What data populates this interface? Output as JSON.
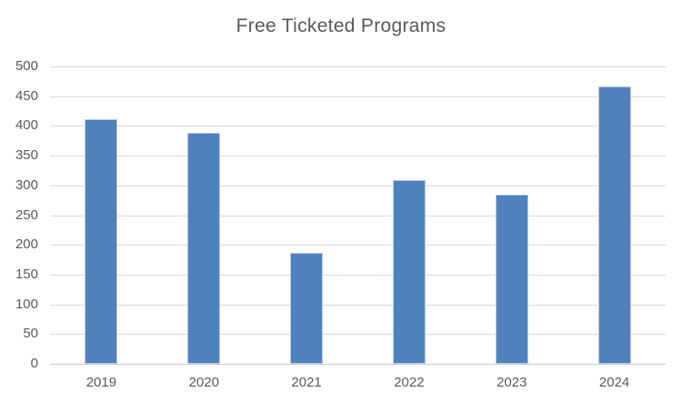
{
  "chart_data": {
    "type": "bar",
    "title": "Free Ticketed Programs",
    "categories": [
      "2019",
      "2020",
      "2021",
      "2022",
      "2023",
      "2024"
    ],
    "values": [
      412,
      388,
      187,
      309,
      285,
      466
    ],
    "xlabel": "",
    "ylabel": "",
    "ylim": [
      0,
      500
    ],
    "ytick_step": 50,
    "ytick_labels": [
      "0",
      "50",
      "100",
      "150",
      "200",
      "250",
      "300",
      "350",
      "400",
      "450",
      "500"
    ],
    "grid": "horizontal",
    "legend": "none",
    "colors": {
      "bar_fill": "#4F81BD",
      "bar_edge_highlight": "#C8DAEE",
      "gridline": "#D9D9D9",
      "axis_line": "#C9C9C9",
      "text": "#595959",
      "background": "#FFFFFF"
    }
  }
}
